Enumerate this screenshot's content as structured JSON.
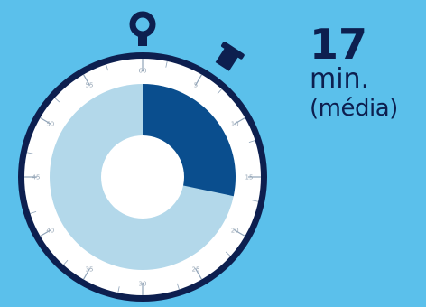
{
  "stat": {
    "value": "17",
    "unit": "min.",
    "note": "(média)"
  },
  "dial": {
    "labels": [
      "5",
      "10",
      "15",
      "20",
      "25",
      "30",
      "35",
      "40",
      "45",
      "50",
      "55",
      "60"
    ],
    "elapsed_fraction": 0.283
  },
  "colors": {
    "background": "#5bc0eb",
    "frame": "#0d1f4f",
    "face": "#ffffff",
    "elapsed": "#0a4e8e",
    "remaining": "#b3d8ea",
    "text": "#0d1f4f"
  }
}
